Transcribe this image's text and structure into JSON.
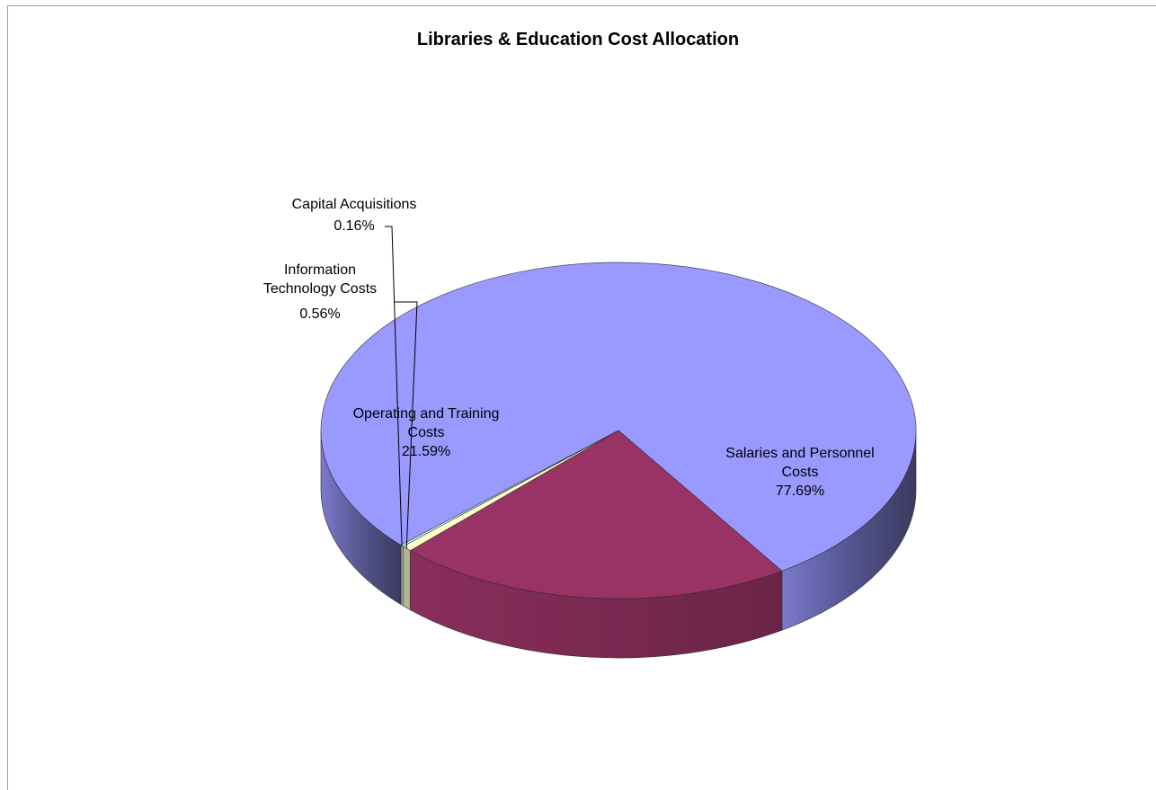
{
  "chart_data": {
    "type": "pie",
    "title": "Libraries & Education Cost Allocation",
    "slices": [
      {
        "label_lines": [
          "Salaries and Personnel",
          "Costs"
        ],
        "value_label": "77.69%",
        "value": 77.69,
        "color": "#9999FF",
        "side_color": "#3D3D66"
      },
      {
        "label_lines": [
          "Operating and Training",
          "Costs"
        ],
        "value_label": "21.59%",
        "value": 21.59,
        "color": "#993366",
        "side_color": "#6B2347"
      },
      {
        "label_lines": [
          "Information",
          "Technology Costs"
        ],
        "value_label": "0.56%",
        "value": 0.56,
        "color": "#FFFFCC",
        "side_color": "#B3B38F"
      },
      {
        "label_lines": [
          "Capital Acquisitions"
        ],
        "value_label": "0.16%",
        "value": 0.16,
        "color": "#CCFFFF",
        "side_color": "#8FB3B3"
      }
    ],
    "style": "3d-pie"
  }
}
